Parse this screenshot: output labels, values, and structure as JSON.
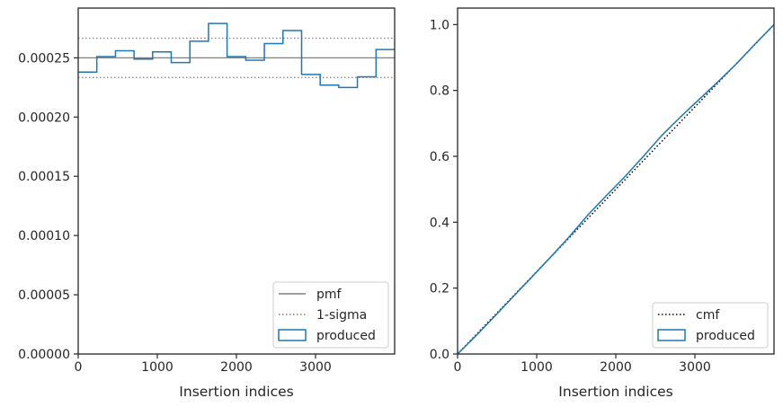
{
  "chart_data": [
    {
      "type": "histogram",
      "xlabel": "Insertion indices",
      "ylabel": "",
      "xlim": [
        0,
        4000
      ],
      "ylim": [
        0,
        0.000292
      ],
      "xticks": [
        0,
        1000,
        2000,
        3000
      ],
      "xtick_labels": [
        "0",
        "1000",
        "2000",
        "3000"
      ],
      "yticks": [
        0,
        5e-05,
        0.0001,
        0.00015,
        0.0002,
        0.00025
      ],
      "ytick_labels": [
        "0.00000",
        "0.00005",
        "0.00010",
        "0.00015",
        "0.00020",
        "0.00025"
      ],
      "bin_edges": [
        0,
        235,
        471,
        706,
        941,
        1176,
        1412,
        1647,
        1882,
        2118,
        2353,
        2588,
        2824,
        3059,
        3294,
        3529,
        3765,
        4000
      ],
      "series": [
        {
          "name": "produced",
          "style": "step",
          "color": "#1f77b4",
          "values": [
            0.000238,
            0.000251,
            0.000256,
            0.000249,
            0.000255,
            0.000246,
            0.000264,
            0.000279,
            0.000251,
            0.000248,
            0.000262,
            0.000273,
            0.000236,
            0.000227,
            0.000225,
            0.000234,
            0.000257
          ]
        }
      ],
      "reference_lines": [
        {
          "name": "pmf",
          "y": 0.00025,
          "style": "solid",
          "color": "#808080"
        },
        {
          "name": "1-sigma",
          "y": 0.0002666,
          "style": "dotted",
          "color": "#808080"
        },
        {
          "name": "",
          "y": 0.0002334,
          "style": "dotted",
          "color": "#808080"
        }
      ],
      "legend": {
        "placement": "lower-right",
        "entries": [
          {
            "label": "pmf",
            "kind": "line-solid",
            "color": "#808080"
          },
          {
            "label": "1-sigma",
            "kind": "line-dotted",
            "color": "#808080"
          },
          {
            "label": "produced",
            "kind": "patch",
            "color": "#1f77b4"
          }
        ]
      },
      "grid": false
    },
    {
      "type": "line",
      "xlabel": "Insertion indices",
      "ylabel": "",
      "xlim": [
        0,
        4000
      ],
      "ylim": [
        0,
        1.05
      ],
      "xticks": [
        0,
        1000,
        2000,
        3000
      ],
      "xtick_labels": [
        "0",
        "1000",
        "2000",
        "3000"
      ],
      "yticks": [
        0,
        0.2,
        0.4,
        0.6,
        0.8,
        1.0
      ],
      "ytick_labels": [
        "0.0",
        "0.2",
        "0.4",
        "0.6",
        "0.8",
        "1.0"
      ],
      "series": [
        {
          "name": "cmf",
          "style": "dotted",
          "color": "#000000",
          "x": [
            0,
            4000
          ],
          "y": [
            0,
            1.0
          ]
        },
        {
          "name": "produced",
          "style": "step",
          "color": "#1f77b4",
          "x": [
            0,
            235,
            471,
            706,
            941,
            1176,
            1412,
            1647,
            1882,
            2118,
            2353,
            2588,
            2824,
            3059,
            3294,
            3529,
            3765,
            4000
          ],
          "y": [
            0,
            0.056,
            0.115,
            0.175,
            0.234,
            0.294,
            0.356,
            0.422,
            0.481,
            0.539,
            0.601,
            0.665,
            0.721,
            0.774,
            0.827,
            0.882,
            0.942,
            1.0
          ]
        }
      ],
      "legend": {
        "placement": "lower-right",
        "entries": [
          {
            "label": "cmf",
            "kind": "line-dotted",
            "color": "#000000"
          },
          {
            "label": "produced",
            "kind": "patch",
            "color": "#1f77b4"
          }
        ]
      },
      "grid": false
    }
  ]
}
